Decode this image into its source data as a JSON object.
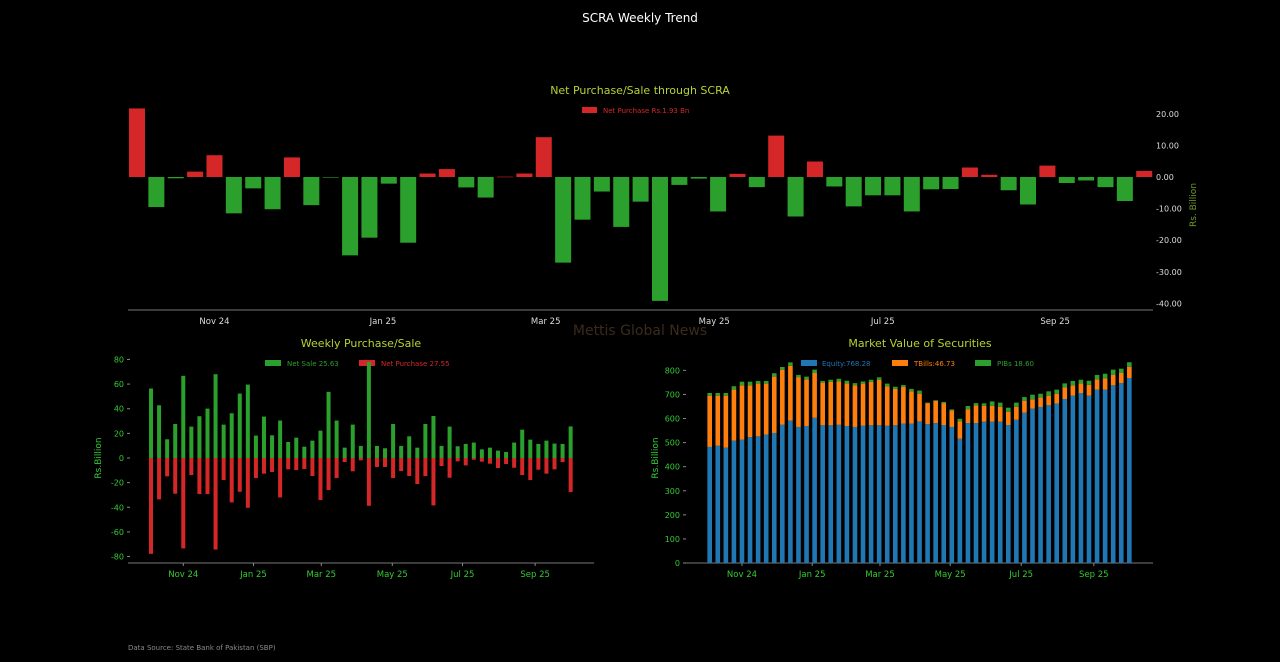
{
  "page_title": "SCRA Weekly Trend",
  "watermark": "Mettis Global News",
  "source": "Data Source: State Bank of Pakistan (SBP)",
  "colors": {
    "green": "#2ca02c",
    "red": "#d62728",
    "blue": "#1f77b4",
    "orange": "#ff7f0e",
    "title": "#b5d334",
    "tick": "#33cc33",
    "axis_label": "#6f9a2a"
  },
  "chart_data": [
    {
      "type": "bar",
      "title": "Net Purchase/Sale through SCRA",
      "legend": [
        "Net Purchase Rs.1.93 Bn"
      ],
      "ylabel": "Rs. Billion",
      "ylim": [
        -40,
        20
      ],
      "yticks": [
        "20.00",
        "10.00",
        "0.00",
        "-10.00",
        "-20.00",
        "-30.00",
        "-40.00"
      ],
      "ytick_values": [
        20,
        10,
        0,
        -10,
        -20,
        -30,
        -40
      ],
      "xticks": [
        "Nov 24",
        "Jan 25",
        "Mar 25",
        "May 25",
        "Jul 25",
        "Sep 25"
      ],
      "xtick_index": [
        4,
        12.7,
        21.1,
        29.8,
        38.5,
        47.4
      ],
      "values": [
        21.7,
        -9.5,
        -0.4,
        1.7,
        6.9,
        -11.5,
        -3.6,
        -10.2,
        6.2,
        -8.9,
        -0.1,
        -24.8,
        -19.2,
        -2.1,
        -20.8,
        1.1,
        2.5,
        -3.3,
        -6.5,
        0.1,
        1.1,
        12.6,
        -27.1,
        -13.5,
        -4.6,
        -15.8,
        -7.8,
        -39.2,
        -2.5,
        -0.5,
        -10.9,
        1.0,
        -3.2,
        13.1,
        -12.5,
        4.9,
        -3.0,
        -9.3,
        -5.8,
        -5.8,
        -10.9,
        -3.9,
        -3.8,
        3.0,
        0.7,
        -4.2,
        -8.7,
        3.6,
        -1.9,
        -1.1,
        -3.2,
        -7.6,
        1.93
      ]
    },
    {
      "type": "bar",
      "title": "Weekly Purchase/Sale",
      "legend": [
        "Net Sale 25.63",
        "Net Purchase 27.55"
      ],
      "ylabel": "Rs.Billion",
      "ylim": [
        -85,
        85
      ],
      "yticks": [
        "80",
        "60",
        "40",
        "20",
        "0",
        "-20",
        "-40",
        "-60",
        "-80"
      ],
      "ytick_values": [
        80,
        60,
        40,
        20,
        0,
        -20,
        -40,
        -60,
        -80
      ],
      "xticks": [
        "Nov 24",
        "Jan 25",
        "Mar 25",
        "May 25",
        "Jul 25",
        "Sep 25"
      ],
      "xtick_index": [
        4,
        12.7,
        21.1,
        29.9,
        38.6,
        47.6
      ],
      "series": [
        {
          "name": "Net Sale",
          "values": [
            56.4,
            42.8,
            15.2,
            27.6,
            66.7,
            25.5,
            33.9,
            40.1,
            68,
            27.1,
            36.3,
            52.3,
            59.6,
            18.2,
            33.6,
            18.4,
            30.4,
            13,
            16.5,
            9.2,
            14.1,
            22.2,
            53.7,
            30.4,
            8.4,
            27.1,
            9.8,
            78,
            9.8,
            7.9,
            27.6,
            9.8,
            17.6,
            8.4,
            27.6,
            34.1,
            9.8,
            25.5,
            9.5,
            11.4,
            12.5,
            7,
            8.4,
            6,
            4.9,
            12.5,
            23,
            14.9,
            11.4,
            14.1,
            11.7,
            11.4,
            25.63
          ]
        },
        {
          "name": "Net Purchase",
          "values": [
            -77.8,
            -33.6,
            -14.9,
            -29,
            -73.4,
            -13.8,
            -29.3,
            -29.3,
            -74.3,
            -17.9,
            -36,
            -27.4,
            -40.4,
            -16.3,
            -12.7,
            -11.4,
            -32,
            -9.2,
            -9.8,
            -8.9,
            -14.6,
            -34.1,
            -26,
            -16.3,
            -3.3,
            -10.8,
            -1.9,
            -38.8,
            -7.3,
            -7.3,
            -16.3,
            -10.6,
            -14.6,
            -21.1,
            -14.6,
            -38.5,
            -6.5,
            -16,
            -2.7,
            -6,
            -1.4,
            -3,
            -4.6,
            -8.1,
            -4.9,
            -7.9,
            -13.8,
            -17.9,
            -9.5,
            -12.7,
            -9.2,
            -3.3,
            -27.55
          ]
        }
      ]
    },
    {
      "type": "bar",
      "stacked": true,
      "title": "Market Value of Securities",
      "legend": [
        "Equity:768.28",
        "TBills:46.73",
        "PIBs 18.60"
      ],
      "ylabel": "Rs.Billion",
      "ylim": [
        0,
        850
      ],
      "yticks": [
        "800",
        "700",
        "600",
        "500",
        "400",
        "300",
        "200",
        "100",
        "0"
      ],
      "ytick_values": [
        800,
        700,
        600,
        500,
        400,
        300,
        200,
        100,
        0
      ],
      "xticks": [
        "Nov 24",
        "Jan 25",
        "Mar 25",
        "May 25",
        "Jul 25",
        "Sep 25"
      ],
      "xtick_index": [
        4,
        12.7,
        21.1,
        29.8,
        38.6,
        47.6
      ],
      "series": [
        {
          "name": "Equity",
          "values": [
            482,
            487,
            479,
            508,
            512,
            523,
            526,
            533,
            540,
            574,
            591,
            565,
            569,
            603,
            572,
            572,
            574,
            569,
            565,
            570,
            572,
            572,
            570,
            572,
            579,
            579,
            588,
            577,
            581,
            573,
            565,
            516,
            581,
            581,
            587,
            587,
            587,
            573,
            595,
            624,
            641,
            648,
            655,
            662,
            681,
            695,
            706,
            695,
            720,
            720,
            738,
            747,
            768.28
          ]
        },
        {
          "name": "TBills",
          "values": [
            213,
            208,
            216,
            212,
            226,
            215,
            219,
            212,
            234,
            229,
            228,
            207,
            194,
            186,
            177,
            180,
            180,
            177,
            173,
            175,
            180,
            189,
            164,
            151,
            152,
            134,
            115,
            87,
            92,
            91,
            68,
            73,
            58,
            74,
            66,
            66,
            62,
            55,
            54,
            50,
            39,
            40,
            40,
            41,
            48,
            43,
            40,
            45,
            43,
            47,
            44,
            42,
            46.73
          ]
        },
        {
          "name": "PIBs",
          "values": [
            11,
            11,
            11,
            14,
            15,
            15,
            11,
            11,
            14,
            11,
            14,
            9,
            11,
            14,
            7,
            9,
            11,
            11,
            9,
            9,
            9,
            10,
            11,
            9,
            8,
            10,
            13,
            2,
            3,
            5,
            5,
            10,
            13,
            9,
            10,
            18,
            17,
            17,
            17,
            15,
            19,
            15,
            18,
            17,
            17,
            18,
            15,
            17,
            18,
            19,
            21,
            18,
            18.6
          ]
        }
      ]
    }
  ]
}
